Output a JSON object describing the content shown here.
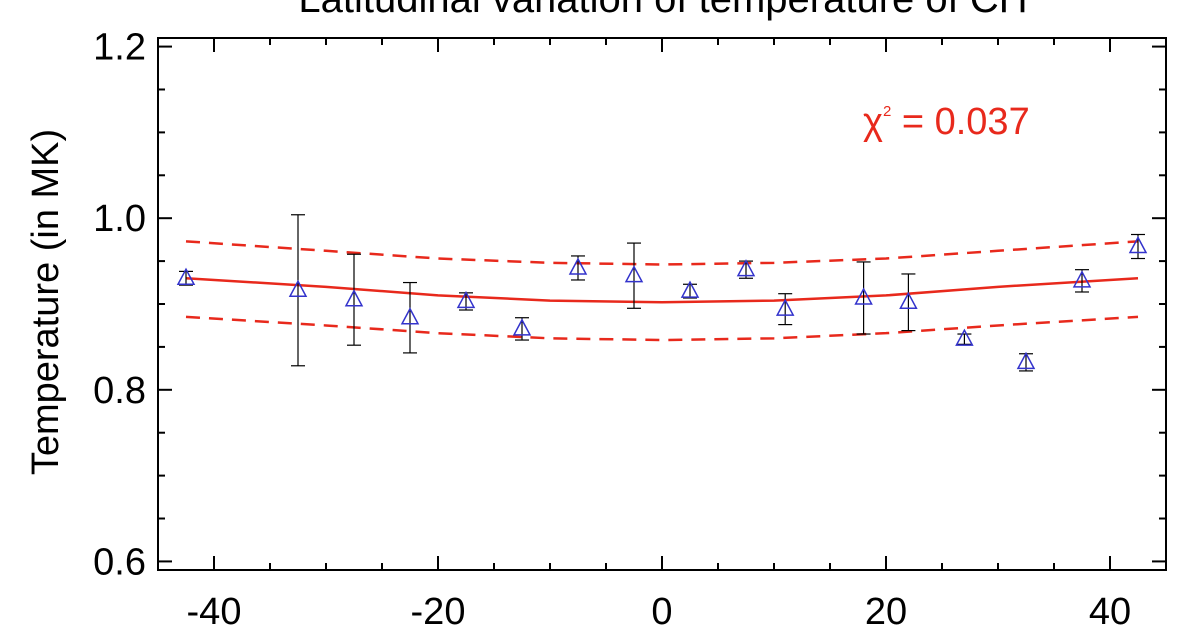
{
  "chart_data": {
    "type": "scatter",
    "title": "Latitudinal variation of temperature of CH",
    "xlabel": "",
    "ylabel": "Temperature (in MK)",
    "xlim": [
      -45,
      45
    ],
    "ylim": [
      0.59,
      1.21
    ],
    "x_ticks": [
      -40,
      -20,
      0,
      20,
      40
    ],
    "y_ticks": [
      0.6,
      0.8,
      1.0,
      1.2
    ],
    "x_tick_labels": [
      "-40",
      "-20",
      "0",
      "20",
      "40"
    ],
    "y_tick_labels": [
      "0.6",
      "0.8",
      "1.0",
      "1.2"
    ],
    "grid": false,
    "annotation": {
      "symbol": "χ",
      "superscript": "2",
      "text": " = 0.037"
    },
    "colors": {
      "points": "#3333cc",
      "fit": "#e8291c",
      "errorbars": "#000000"
    },
    "points": [
      {
        "x": -42.5,
        "y": 0.93,
        "err": 0.008
      },
      {
        "x": -32.5,
        "y": 0.916,
        "err": 0.088
      },
      {
        "x": -27.5,
        "y": 0.905,
        "err": 0.053
      },
      {
        "x": -22.5,
        "y": 0.884,
        "err": 0.041
      },
      {
        "x": -17.5,
        "y": 0.903,
        "err": 0.01
      },
      {
        "x": -12.5,
        "y": 0.871,
        "err": 0.013
      },
      {
        "x": -7.5,
        "y": 0.942,
        "err": 0.014
      },
      {
        "x": -2.5,
        "y": 0.933,
        "err": 0.038
      },
      {
        "x": 2.5,
        "y": 0.915,
        "err": 0.008
      },
      {
        "x": 7.5,
        "y": 0.94,
        "err": 0.01
      },
      {
        "x": 11.0,
        "y": 0.894,
        "err": 0.018
      },
      {
        "x": 18.0,
        "y": 0.907,
        "err": 0.042
      },
      {
        "x": 22.0,
        "y": 0.902,
        "err": 0.033
      },
      {
        "x": 27.0,
        "y": 0.859,
        "err": 0.006
      },
      {
        "x": 32.5,
        "y": 0.832,
        "err": 0.01
      },
      {
        "x": 37.5,
        "y": 0.927,
        "err": 0.013
      },
      {
        "x": 42.5,
        "y": 0.967,
        "err": 0.014
      }
    ],
    "fit": {
      "x": [
        -42.5,
        -30,
        -20,
        -10,
        0,
        10,
        20,
        30,
        42.5
      ],
      "y": [
        0.93,
        0.92,
        0.91,
        0.904,
        0.902,
        0.904,
        0.91,
        0.92,
        0.93
      ]
    },
    "fit_upper": {
      "x": [
        -42.5,
        -30,
        -20,
        -10,
        0,
        10,
        20,
        30,
        42.5
      ],
      "y": [
        0.973,
        0.962,
        0.953,
        0.948,
        0.946,
        0.948,
        0.953,
        0.962,
        0.973
      ]
    },
    "fit_lower": {
      "x": [
        -42.5,
        -30,
        -20,
        -10,
        0,
        10,
        20,
        30,
        42.5
      ],
      "y": [
        0.885,
        0.875,
        0.866,
        0.86,
        0.858,
        0.86,
        0.866,
        0.875,
        0.885
      ]
    }
  }
}
